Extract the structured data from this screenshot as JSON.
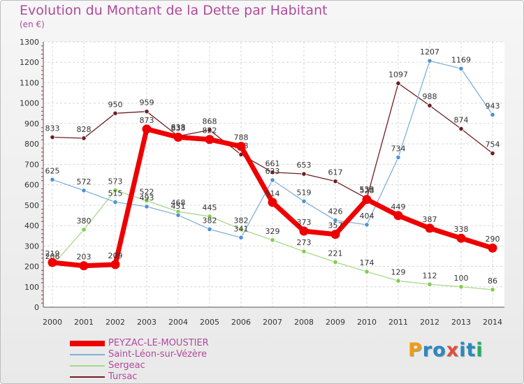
{
  "header": {
    "title": "Evolution du Montant de la Dette par Habitant",
    "subtitle": "(en €)"
  },
  "logo": {
    "letters": [
      "P",
      "r",
      "o",
      "x",
      "i",
      "t",
      "i"
    ],
    "colors": [
      "#f39c12",
      "#2e86c1",
      "#2e86c1",
      "#e74c3c",
      "#2e86c1",
      "#2e86c1",
      "#27ae60"
    ]
  },
  "chart_data": {
    "type": "line",
    "title": "Evolution du Montant de la Dette par Habitant",
    "ylabel": "(en €)",
    "xlabel": "",
    "x": [
      2000,
      2001,
      2002,
      2003,
      2004,
      2005,
      2006,
      2007,
      2008,
      2009,
      2010,
      2011,
      2012,
      2013,
      2014
    ],
    "ylim": [
      0,
      1300
    ],
    "yticks": [
      0,
      100,
      200,
      300,
      400,
      500,
      600,
      700,
      800,
      900,
      1000,
      1100,
      1200,
      1300
    ],
    "grid": true,
    "legend_position": "bottom-left",
    "series": [
      {
        "name": "Tursac",
        "color": "#6e1f23",
        "marker_color": "#6e1f23",
        "values": [
          833,
          828,
          950,
          959,
          838,
          868,
          748,
          661,
          653,
          617,
          533,
          1097,
          988,
          874,
          754
        ]
      },
      {
        "name": "Sergeac",
        "color": "#a8d98a",
        "marker_color": "#7fd04a",
        "values": [
          206,
          380,
          573,
          522,
          468,
          445,
          382,
          329,
          273,
          221,
          174,
          129,
          112,
          100,
          86
        ]
      },
      {
        "name": "Saint-Léon-sur-Vézère",
        "color": "#7fb0d9",
        "marker_color": "#4f93d0",
        "values": [
          625,
          572,
          515,
          493,
          451,
          382,
          341,
          623,
          519,
          426,
          404,
          734,
          1207,
          1169,
          943
        ]
      },
      {
        "name": "PEYZAC-LE-MOUSTIER",
        "color": "#ee0000",
        "marker_color": "#ee0000",
        "values": [
          219,
          203,
          209,
          873,
          833,
          822,
          788,
          514,
          373,
          357,
          528,
          449,
          387,
          338,
          290
        ]
      }
    ]
  }
}
